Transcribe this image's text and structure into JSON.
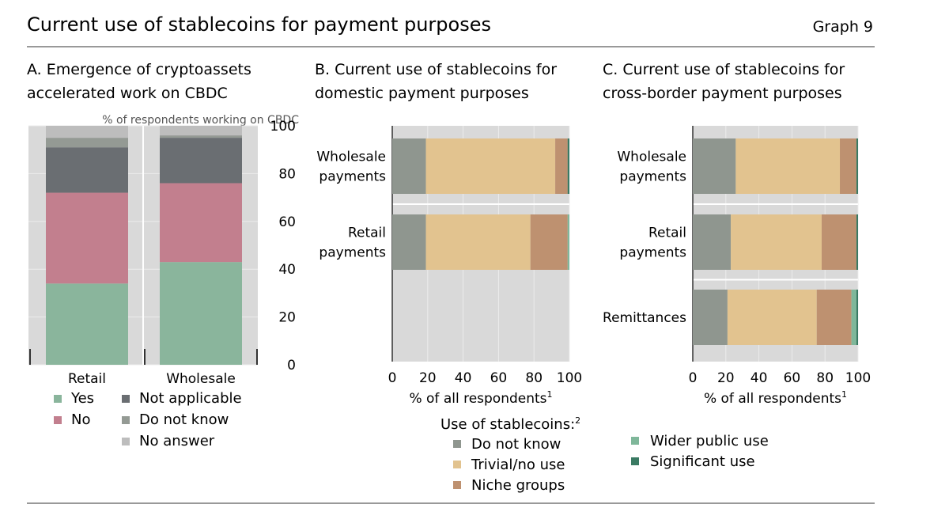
{
  "title": "Current use of stablecoins for payment purposes",
  "graph_label": "Graph 9",
  "colors": {
    "yes": "#8AB59C",
    "no": "#C27F8E",
    "not_applicable": "#6A6E72",
    "do_not_know_a": "#949A94",
    "no_answer": "#BDBDBD",
    "do_not_know": "#8F968F",
    "trivial": "#E2C38F",
    "niche": "#BE9170",
    "wider": "#7FB79A",
    "significant": "#3A7A63",
    "panel_bg": "#D9D9D9",
    "grid": "#ECECEC"
  },
  "chart_data": [
    {
      "id": "A",
      "type": "bar",
      "orientation": "vertical",
      "stacked": true,
      "title_lines": [
        "A. Emergence of cryptoassets",
        "accelerated work on CBDC"
      ],
      "unit_label": "% of respondents working on CBDC",
      "categories": [
        "Retail",
        "Wholesale"
      ],
      "series": [
        {
          "name": "Yes",
          "color_key": "yes",
          "values": [
            34,
            43
          ]
        },
        {
          "name": "No",
          "color_key": "no",
          "values": [
            38,
            33
          ]
        },
        {
          "name": "Not applicable",
          "color_key": "not_applicable",
          "values": [
            19,
            19
          ]
        },
        {
          "name": "Do not know",
          "color_key": "do_not_know_a",
          "values": [
            4,
            1
          ]
        },
        {
          "name": "No answer",
          "color_key": "no_answer",
          "values": [
            5,
            4
          ]
        }
      ],
      "ylim": [
        0,
        100
      ],
      "yticks": [
        "0",
        "20",
        "40",
        "60",
        "80",
        "100"
      ],
      "grid": true,
      "legend": [
        {
          "label": "Yes",
          "color_key": "yes"
        },
        {
          "label": "Not applicable",
          "color_key": "not_applicable"
        },
        {
          "label": "No",
          "color_key": "no"
        },
        {
          "label": "Do not know",
          "color_key": "do_not_know_a"
        },
        {
          "label": "No answer",
          "color_key": "no_answer"
        }
      ]
    },
    {
      "id": "B",
      "type": "bar",
      "orientation": "horizontal",
      "stacked": true,
      "title_lines": [
        "B. Current use of stablecoins for",
        "domestic payment purposes"
      ],
      "categories": [
        [
          "Wholesale",
          "payments"
        ],
        [
          "Retail",
          "payments"
        ]
      ],
      "series": [
        {
          "name": "Do not know",
          "color_key": "do_not_know",
          "values": [
            19,
            19
          ]
        },
        {
          "name": "Trivial/no use",
          "color_key": "trivial",
          "values": [
            73,
            59
          ]
        },
        {
          "name": "Niche groups",
          "color_key": "niche",
          "values": [
            7,
            21
          ]
        },
        {
          "name": "Wider public use",
          "color_key": "wider",
          "values": [
            0,
            1
          ]
        },
        {
          "name": "Significant use",
          "color_key": "significant",
          "values": [
            1,
            0
          ]
        }
      ],
      "xlim": [
        0,
        100
      ],
      "xticks": [
        "0",
        "20",
        "40",
        "60",
        "80",
        "100"
      ],
      "xlabel": "% of all respondents",
      "xlabel_sup": "1",
      "grid": true,
      "legend_title": "Use of stablecoins:",
      "legend_title_sup": "2",
      "legend": [
        {
          "label": "Do not know",
          "color_key": "do_not_know"
        },
        {
          "label": "Trivial/no use",
          "color_key": "trivial"
        },
        {
          "label": "Niche groups",
          "color_key": "niche"
        }
      ]
    },
    {
      "id": "C",
      "type": "bar",
      "orientation": "horizontal",
      "stacked": true,
      "title_lines": [
        "C. Current use of stablecoins for",
        "cross-border payment purposes"
      ],
      "categories": [
        [
          "Wholesale",
          "payments"
        ],
        [
          "Retail",
          "payments"
        ],
        [
          "Remittances"
        ]
      ],
      "series": [
        {
          "name": "Do not know",
          "color_key": "do_not_know",
          "values": [
            26,
            23,
            21
          ]
        },
        {
          "name": "Trivial/no use",
          "color_key": "trivial",
          "values": [
            63,
            55,
            54
          ]
        },
        {
          "name": "Niche groups",
          "color_key": "niche",
          "values": [
            10,
            21,
            21
          ]
        },
        {
          "name": "Wider public use",
          "color_key": "wider",
          "values": [
            0,
            0,
            3
          ]
        },
        {
          "name": "Significant use",
          "color_key": "significant",
          "values": [
            1,
            1,
            1
          ]
        }
      ],
      "xlim": [
        0,
        100
      ],
      "xticks": [
        "0",
        "20",
        "40",
        "60",
        "80",
        "100"
      ],
      "xlabel": "% of all respondents",
      "xlabel_sup": "1",
      "grid": true,
      "legend": [
        {
          "label": "Wider public use",
          "color_key": "wider"
        },
        {
          "label": "Significant use",
          "color_key": "significant"
        }
      ]
    }
  ]
}
